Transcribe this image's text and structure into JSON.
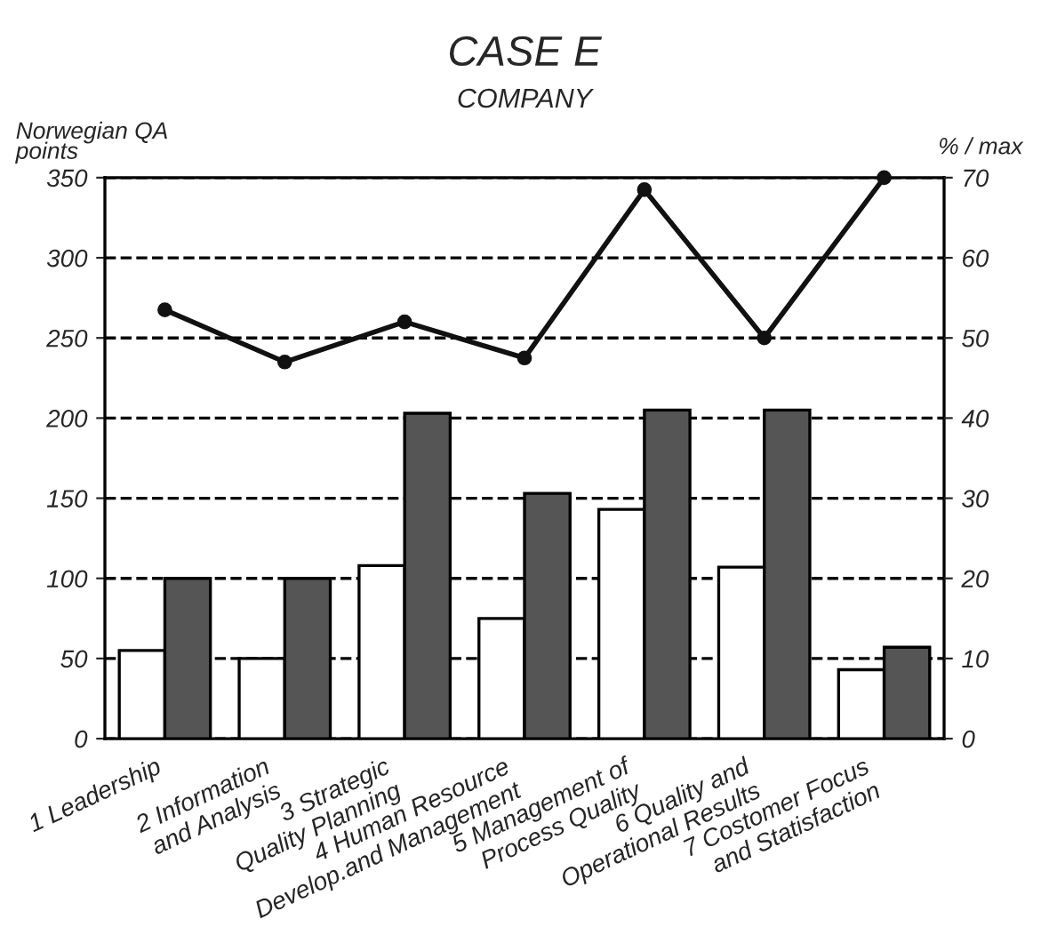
{
  "chart_data": {
    "type": "bar",
    "title": "CASE E",
    "subtitle": "COMPANY",
    "ylabel": "Norwegian QA\npoints",
    "y2label": "% / max",
    "categories": [
      "1 Leadership",
      "2 Information\nand Analysis",
      "3 Strategic\nQuality Planning",
      "4 Human Resource\nDevelop.and Management",
      "5 Management of\nProcess Quality",
      "6 Quality and\nOperational Results",
      "7 Costomer Focus\nand Statisfaction"
    ],
    "series": [
      {
        "color": "#ffffff",
        "values": [
          55,
          50,
          108,
          75,
          143,
          107,
          43
        ]
      },
      {
        "color": "#555555",
        "values": [
          100,
          100,
          203,
          153,
          205,
          205,
          57
        ]
      },
      {
        "type": "line",
        "axis": "y2",
        "color": "#111111",
        "marker": "circle",
        "line_style": "solid",
        "values": [
          53.5,
          47,
          52,
          47.5,
          68.5,
          50,
          70
        ]
      }
    ],
    "ylim": [
      0,
      350
    ],
    "yticks": [
      0,
      50,
      100,
      150,
      200,
      250,
      300,
      350
    ],
    "y2lim": [
      0,
      70
    ],
    "y2ticks": [
      0,
      10,
      20,
      30,
      40,
      50,
      60,
      70
    ],
    "grid": "y",
    "legend": false
  }
}
